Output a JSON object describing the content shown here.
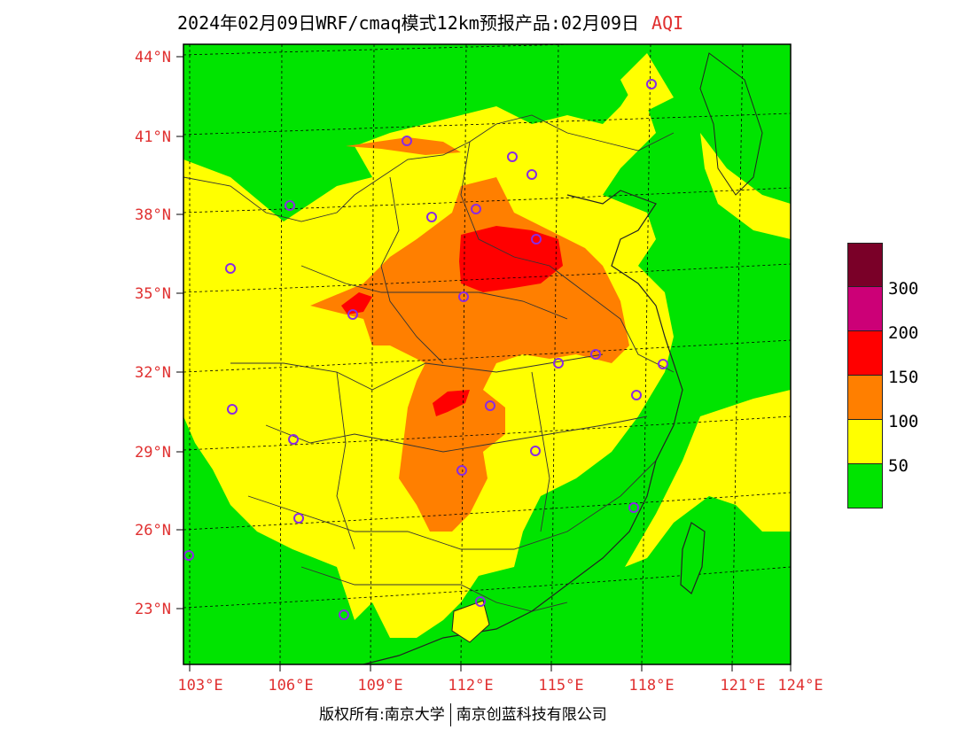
{
  "title": {
    "main": "2024年02月09日WRF/cmaq模式12km预报产品:02月09日",
    "aqi": "AQI"
  },
  "lat_labels": [
    "44°N",
    "41°N",
    "38°N",
    "35°N",
    "32°N",
    "29°N",
    "26°N",
    "23°N"
  ],
  "lon_labels": [
    "103°E",
    "106°E",
    "109°E",
    "112°E",
    "115°E",
    "118°E",
    "121°E",
    "124°E"
  ],
  "legend": {
    "ticks": [
      "300",
      "200",
      "150",
      "100",
      "50"
    ],
    "colors": [
      "#7a0028",
      "#cc0077",
      "#ff0000",
      "#ff7f00",
      "#ffff00",
      "#00e400"
    ]
  },
  "footer": {
    "left": "版权所有:南京大学",
    "right": "南京创蓝科技有限公司"
  }
}
